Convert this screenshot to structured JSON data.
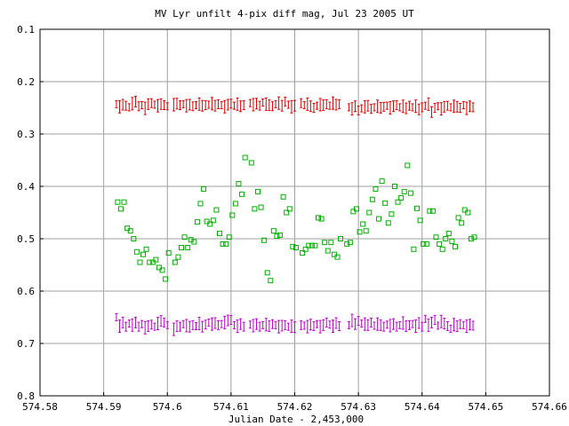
{
  "chart_data": {
    "type": "scatter",
    "title": "MV Lyr unfilt 4-pix diff mag, Jul 23 2005 UT",
    "xlabel": "Julian Date - 2,453,000",
    "ylabel": "",
    "xlim": [
      574.58,
      574.66
    ],
    "ylim": [
      0.1,
      0.8
    ],
    "y_inverted": true,
    "grid": true,
    "x_ticks": [
      "574.58",
      "574.59",
      "574.6",
      "574.61",
      "574.62",
      "574.63",
      "574.64",
      "574.65",
      "574.66"
    ],
    "y_ticks": [
      "0.1",
      "0.2",
      "0.3",
      "0.4",
      "0.5",
      "0.6",
      "0.7",
      "0.8"
    ],
    "series": [
      {
        "color": "#e00000",
        "marker": "errorbar",
        "x": [
          574.592,
          574.5925,
          574.593,
          574.5935,
          574.594,
          574.5945,
          574.595,
          574.5955,
          574.596,
          574.5965,
          574.597,
          574.5975,
          574.598,
          574.5985,
          574.599,
          574.5995,
          574.6,
          574.601,
          574.6015,
          574.602,
          574.6025,
          574.603,
          574.6035,
          574.604,
          574.6045,
          574.605,
          574.6055,
          574.606,
          574.6065,
          574.607,
          574.6075,
          574.608,
          574.6085,
          574.609,
          574.6095,
          574.61,
          574.6105,
          574.611,
          574.6115,
          574.612,
          574.613,
          574.6135,
          574.614,
          574.6145,
          574.615,
          574.6155,
          574.616,
          574.6165,
          574.617,
          574.6175,
          574.618,
          574.6185,
          574.619,
          574.6195,
          574.62,
          574.621,
          574.6215,
          574.622,
          574.6225,
          574.623,
          574.6235,
          574.624,
          574.6245,
          574.625,
          574.6255,
          574.626,
          574.6265,
          574.627,
          574.6285,
          574.629,
          574.6295,
          574.63,
          574.6305,
          574.631,
          574.6315,
          574.632,
          574.6325,
          574.633,
          574.6335,
          574.634,
          574.6345,
          574.635,
          574.6355,
          574.636,
          574.6365,
          574.637,
          574.6375,
          574.638,
          574.6385,
          574.639,
          574.6395,
          574.64,
          574.6405,
          574.641,
          574.6415,
          574.642,
          574.6425,
          574.643,
          574.6435,
          574.644,
          574.6445,
          574.645,
          574.6455,
          574.646,
          574.6465,
          574.647,
          574.6475,
          574.648
        ],
        "y": [
          0.243,
          0.248,
          0.244,
          0.246,
          0.249,
          0.242,
          0.238,
          0.247,
          0.245,
          0.251,
          0.243,
          0.241,
          0.244,
          0.246,
          0.243,
          0.245,
          0.247,
          0.244,
          0.242,
          0.245,
          0.243,
          0.246,
          0.244,
          0.247,
          0.245,
          0.243,
          0.246,
          0.245,
          0.244,
          0.242,
          0.246,
          0.243,
          0.245,
          0.248,
          0.244,
          0.242,
          0.246,
          0.243,
          0.247,
          0.245,
          0.241,
          0.244,
          0.242,
          0.246,
          0.24,
          0.243,
          0.245,
          0.247,
          0.243,
          0.241,
          0.246,
          0.238,
          0.244,
          0.248,
          0.246,
          0.241,
          0.245,
          0.243,
          0.247,
          0.25,
          0.246,
          0.244,
          0.245,
          0.243,
          0.246,
          0.241,
          0.244,
          0.243,
          0.249,
          0.252,
          0.247,
          0.255,
          0.251,
          0.248,
          0.246,
          0.252,
          0.249,
          0.247,
          0.25,
          0.248,
          0.246,
          0.25,
          0.247,
          0.245,
          0.249,
          0.247,
          0.251,
          0.246,
          0.249,
          0.247,
          0.253,
          0.249,
          0.246,
          0.243,
          0.258,
          0.25,
          0.247,
          0.252,
          0.248,
          0.246,
          0.249,
          0.247,
          0.248,
          0.25,
          0.245,
          0.251,
          0.247,
          0.249
        ]
      },
      {
        "color": "#00b000",
        "marker": "square",
        "x": [
          574.5922,
          574.5927,
          574.5932,
          574.5937,
          574.5942,
          574.5947,
          574.5952,
          574.5957,
          574.5962,
          574.5967,
          574.5972,
          574.5977,
          574.5982,
          574.5987,
          574.5992,
          574.5997,
          574.6002,
          574.6012,
          574.6017,
          574.6022,
          574.6027,
          574.6032,
          574.6037,
          574.6042,
          574.6047,
          574.6052,
          574.6057,
          574.6062,
          574.6067,
          574.6072,
          574.6077,
          574.6082,
          574.6087,
          574.6092,
          574.6097,
          574.6102,
          574.6107,
          574.6112,
          574.6117,
          574.6122,
          574.6132,
          574.6137,
          574.6142,
          574.6147,
          574.6152,
          574.6157,
          574.6162,
          574.6167,
          574.6172,
          574.6177,
          574.6182,
          574.6187,
          574.6192,
          574.6197,
          574.6202,
          574.6212,
          574.6217,
          574.6222,
          574.6227,
          574.6232,
          574.6237,
          574.6242,
          574.6247,
          574.6252,
          574.6257,
          574.6262,
          574.6267,
          574.6272,
          574.6282,
          574.6287,
          574.6292,
          574.6297,
          574.6302,
          574.6307,
          574.6312,
          574.6317,
          574.6322,
          574.6327,
          574.6332,
          574.6337,
          574.6342,
          574.6347,
          574.6352,
          574.6357,
          574.6362,
          574.6367,
          574.6372,
          574.6377,
          574.6382,
          574.6387,
          574.6392,
          574.6397,
          574.6402,
          574.6407,
          574.6412,
          574.6417,
          574.6422,
          574.6427,
          574.6432,
          574.6437,
          574.6442,
          574.6447,
          574.6452,
          574.6457,
          574.6462,
          574.6467,
          574.6472,
          574.6477,
          574.6482
        ],
        "y": [
          0.43,
          0.443,
          0.43,
          0.48,
          0.485,
          0.5,
          0.525,
          0.545,
          0.53,
          0.52,
          0.545,
          0.545,
          0.54,
          0.555,
          0.56,
          0.577,
          0.527,
          0.545,
          0.535,
          0.517,
          0.497,
          0.517,
          0.502,
          0.506,
          0.468,
          0.433,
          0.405,
          0.467,
          0.472,
          0.465,
          0.445,
          0.49,
          0.51,
          0.51,
          0.497,
          0.455,
          0.433,
          0.395,
          0.415,
          0.345,
          0.355,
          0.443,
          0.41,
          0.44,
          0.503,
          0.565,
          0.58,
          0.485,
          0.495,
          0.493,
          0.42,
          0.45,
          0.443,
          0.515,
          0.517,
          0.527,
          0.52,
          0.513,
          0.513,
          0.513,
          0.46,
          0.462,
          0.507,
          0.523,
          0.507,
          0.53,
          0.535,
          0.5,
          0.51,
          0.507,
          0.448,
          0.443,
          0.487,
          0.472,
          0.485,
          0.45,
          0.425,
          0.405,
          0.462,
          0.39,
          0.432,
          0.47,
          0.453,
          0.4,
          0.43,
          0.422,
          0.41,
          0.36,
          0.413,
          0.52,
          0.442,
          0.465,
          0.51,
          0.51,
          0.447,
          0.447,
          0.497,
          0.51,
          0.52,
          0.5,
          0.49,
          0.505,
          0.515,
          0.46,
          0.47,
          0.445,
          0.45,
          0.5,
          0.497
        ]
      },
      {
        "color": "#c000d0",
        "marker": "errorbar",
        "x": [
          574.592,
          574.5925,
          574.593,
          574.5935,
          574.594,
          574.5945,
          574.595,
          574.5955,
          574.596,
          574.5965,
          574.597,
          574.5975,
          574.598,
          574.5985,
          574.599,
          574.5995,
          574.6,
          574.601,
          574.6015,
          574.602,
          574.6025,
          574.603,
          574.6035,
          574.604,
          574.6045,
          574.605,
          574.6055,
          574.606,
          574.6065,
          574.607,
          574.6075,
          574.608,
          574.6085,
          574.609,
          574.6095,
          574.61,
          574.6105,
          574.611,
          574.6115,
          574.612,
          574.613,
          574.6135,
          574.614,
          574.6145,
          574.615,
          574.6155,
          574.616,
          574.6165,
          574.617,
          574.6175,
          574.618,
          574.6185,
          574.619,
          574.6195,
          574.62,
          574.621,
          574.6215,
          574.622,
          574.6225,
          574.623,
          574.6235,
          574.624,
          574.6245,
          574.625,
          574.6255,
          574.626,
          574.6265,
          574.627,
          574.6285,
          574.629,
          574.6295,
          574.63,
          574.6305,
          574.631,
          574.6315,
          574.632,
          574.6325,
          574.633,
          574.6335,
          574.634,
          574.6345,
          574.635,
          574.6355,
          574.636,
          574.6365,
          574.637,
          574.6375,
          574.638,
          574.6385,
          574.639,
          574.6395,
          574.64,
          574.6405,
          574.641,
          574.6415,
          574.642,
          574.6425,
          574.643,
          574.6435,
          574.644,
          574.6445,
          574.645,
          574.6455,
          574.646,
          574.6465,
          574.647,
          574.6475,
          574.648
        ],
        "y": [
          0.65,
          0.667,
          0.66,
          0.668,
          0.662,
          0.665,
          0.66,
          0.668,
          0.663,
          0.67,
          0.667,
          0.664,
          0.668,
          0.662,
          0.657,
          0.66,
          0.665,
          0.673,
          0.667,
          0.668,
          0.663,
          0.666,
          0.668,
          0.665,
          0.667,
          0.662,
          0.668,
          0.664,
          0.66,
          0.663,
          0.661,
          0.665,
          0.663,
          0.66,
          0.656,
          0.655,
          0.665,
          0.667,
          0.663,
          0.668,
          0.664,
          0.666,
          0.663,
          0.668,
          0.665,
          0.664,
          0.667,
          0.663,
          0.665,
          0.668,
          0.666,
          0.665,
          0.668,
          0.667,
          0.669,
          0.665,
          0.666,
          0.668,
          0.664,
          0.667,
          0.663,
          0.668,
          0.665,
          0.66,
          0.664,
          0.667,
          0.661,
          0.667,
          0.665,
          0.656,
          0.663,
          0.657,
          0.662,
          0.663,
          0.665,
          0.66,
          0.666,
          0.663,
          0.665,
          0.668,
          0.664,
          0.666,
          0.663,
          0.668,
          0.665,
          0.661,
          0.667,
          0.665,
          0.663,
          0.667,
          0.661,
          0.668,
          0.653,
          0.665,
          0.66,
          0.655,
          0.666,
          0.658,
          0.662,
          0.667,
          0.672,
          0.664,
          0.667,
          0.663,
          0.665,
          0.667,
          0.664,
          0.666
        ]
      }
    ]
  }
}
